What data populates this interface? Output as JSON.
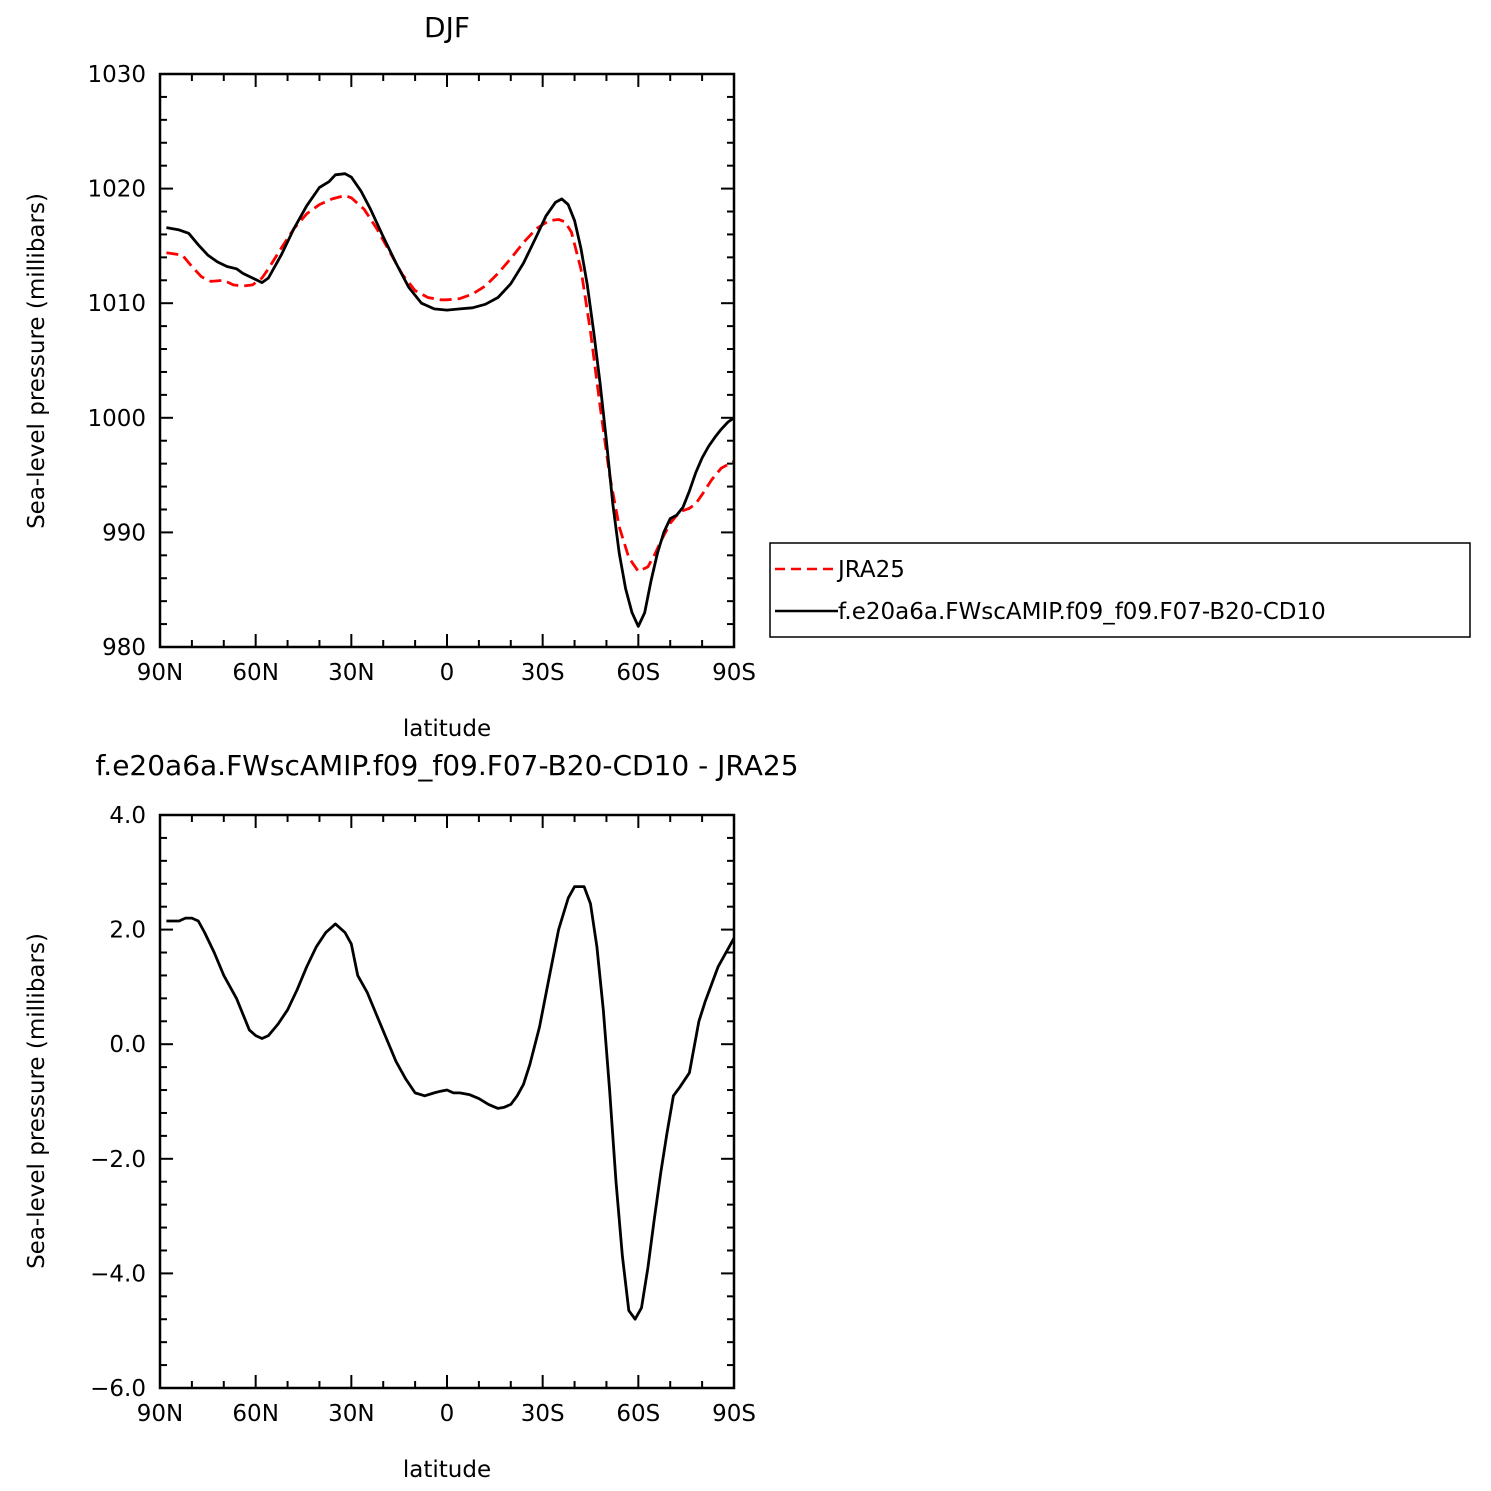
{
  "chart_data": [
    {
      "type": "line",
      "title": "DJF",
      "xlabel": "latitude",
      "ylabel": "Sea-level pressure (millibars)",
      "xlim": [
        90,
        -90
      ],
      "ylim": [
        980,
        1030
      ],
      "xticks": [
        90,
        60,
        30,
        0,
        -30,
        -60,
        -90
      ],
      "xtick_labels": [
        "90N",
        "60N",
        "30N",
        "0",
        "30S",
        "60S",
        "90S"
      ],
      "yticks": [
        980,
        990,
        1000,
        1010,
        1020,
        1030
      ],
      "ytick_labels": [
        "980",
        "990",
        "1000",
        "1010",
        "1020",
        "1030"
      ],
      "legend_position": "right",
      "series": [
        {
          "name": "JRA25",
          "color": "#ff0000",
          "style": "dashed",
          "x": [
            88,
            83,
            80,
            77,
            74,
            70,
            67,
            64,
            61,
            58,
            56,
            52,
            48,
            44,
            40,
            36,
            32,
            30,
            26,
            22,
            18,
            14,
            10,
            6,
            2,
            0,
            -4,
            -8,
            -12,
            -16,
            -20,
            -24,
            -28,
            -32,
            -35,
            -37,
            -39,
            -42,
            -45,
            -48,
            -51,
            -54,
            -57,
            -60,
            -63,
            -65,
            -67,
            -70,
            -73,
            -76,
            -78,
            -80,
            -83,
            -86,
            -90
          ],
          "y": [
            1014.4,
            1014.2,
            1013.2,
            1012.3,
            1011.9,
            1012.0,
            1011.6,
            1011.5,
            1011.6,
            1012.2,
            1013.0,
            1014.8,
            1016.5,
            1017.8,
            1018.6,
            1019.1,
            1019.4,
            1019.2,
            1018.2,
            1016.5,
            1014.5,
            1012.5,
            1011.1,
            1010.5,
            1010.3,
            1010.3,
            1010.4,
            1010.8,
            1011.5,
            1012.6,
            1013.9,
            1015.3,
            1016.5,
            1017.2,
            1017.3,
            1017.1,
            1016.2,
            1013.0,
            1007.5,
            1001.0,
            995.0,
            990.5,
            987.8,
            986.6,
            987.0,
            988.0,
            989.2,
            990.8,
            991.8,
            992.1,
            992.5,
            993.3,
            994.6,
            995.6,
            996.2
          ]
        },
        {
          "name": "f.e20a6a.FWscAMIP.f09_f09.F07-B20-CD10",
          "color": "#000000",
          "style": "solid",
          "x": [
            88,
            84,
            81,
            78,
            75,
            72,
            69,
            66,
            64,
            61,
            58,
            56,
            52,
            48,
            44,
            40,
            37,
            35,
            32,
            30,
            27,
            24,
            20,
            16,
            12,
            8,
            4,
            0,
            -4,
            -8,
            -12,
            -16,
            -20,
            -24,
            -28,
            -31,
            -34,
            -36,
            -38,
            -40,
            -42,
            -44,
            -46,
            -48,
            -50,
            -52,
            -54,
            -56,
            -58,
            -60,
            -62,
            -64,
            -66,
            -68,
            -70,
            -72,
            -74,
            -76,
            -78,
            -80,
            -82,
            -84,
            -86,
            -88,
            -90
          ],
          "y": [
            1016.6,
            1016.4,
            1016.1,
            1015.1,
            1014.2,
            1013.6,
            1013.2,
            1013.0,
            1012.6,
            1012.2,
            1011.8,
            1012.2,
            1014.2,
            1016.5,
            1018.5,
            1020.1,
            1020.6,
            1021.2,
            1021.3,
            1021.0,
            1019.8,
            1018.2,
            1015.8,
            1013.5,
            1011.4,
            1010.0,
            1009.5,
            1009.4,
            1009.5,
            1009.6,
            1009.9,
            1010.5,
            1011.7,
            1013.5,
            1015.8,
            1017.6,
            1018.8,
            1019.1,
            1018.6,
            1017.2,
            1014.8,
            1011.6,
            1007.5,
            1003.0,
            998.0,
            992.5,
            988.2,
            985.1,
            983.0,
            981.8,
            983.0,
            985.8,
            988.2,
            990.0,
            991.2,
            991.5,
            992.2,
            993.6,
            995.2,
            996.5,
            997.5,
            998.3,
            999.0,
            999.6,
            1000.0
          ]
        }
      ]
    },
    {
      "type": "line",
      "title": "f.e20a6a.FWscAMIP.f09_f09.F07-B20-CD10  -  JRA25",
      "xlabel": "latitude",
      "ylabel": "Sea-level pressure (millibars)",
      "xlim": [
        90,
        -90
      ],
      "ylim": [
        -6,
        4
      ],
      "xticks": [
        90,
        60,
        30,
        0,
        -30,
        -60,
        -90
      ],
      "xtick_labels": [
        "90N",
        "60N",
        "30N",
        "0",
        "30S",
        "60S",
        "90S"
      ],
      "yticks": [
        -6,
        -4,
        -2,
        0,
        2,
        4
      ],
      "ytick_labels": [
        "−6.0",
        "−4.0",
        "−2.0",
        "0.0",
        "2.0",
        "4.0"
      ],
      "series": [
        {
          "color": "#000000",
          "style": "solid",
          "x": [
            88,
            84,
            82,
            80,
            78,
            76,
            73,
            70,
            66,
            62,
            60,
            58,
            56,
            53,
            50,
            47,
            44,
            41,
            38,
            35,
            32,
            30,
            28,
            25,
            22,
            19,
            16,
            13,
            10,
            7,
            4,
            2,
            0,
            -2,
            -4,
            -7,
            -10,
            -13,
            -16,
            -18,
            -20,
            -22,
            -24,
            -26,
            -29,
            -32,
            -35,
            -38,
            -40,
            -42,
            -43,
            -45,
            -47,
            -49,
            -51,
            -53,
            -55,
            -57,
            -59,
            -61,
            -63,
            -65,
            -67,
            -69,
            -71,
            -73,
            -76,
            -79,
            -81,
            -83,
            -85,
            -87,
            -90
          ],
          "y": [
            2.15,
            2.15,
            2.2,
            2.2,
            2.15,
            1.95,
            1.6,
            1.2,
            0.8,
            0.25,
            0.15,
            0.1,
            0.15,
            0.35,
            0.6,
            0.95,
            1.35,
            1.7,
            1.95,
            2.1,
            1.95,
            1.75,
            1.2,
            0.9,
            0.5,
            0.1,
            -0.3,
            -0.6,
            -0.85,
            -0.9,
            -0.85,
            -0.82,
            -0.8,
            -0.85,
            -0.85,
            -0.88,
            -0.95,
            -1.05,
            -1.12,
            -1.1,
            -1.05,
            -0.9,
            -0.7,
            -0.35,
            0.3,
            1.15,
            2.0,
            2.55,
            2.75,
            2.75,
            2.75,
            2.45,
            1.7,
            0.6,
            -0.8,
            -2.4,
            -3.7,
            -4.65,
            -4.8,
            -4.6,
            -3.9,
            -3.05,
            -2.25,
            -1.55,
            -0.9,
            -0.75,
            -0.5,
            0.4,
            0.75,
            1.05,
            1.35,
            1.55,
            1.85
          ]
        }
      ]
    }
  ]
}
